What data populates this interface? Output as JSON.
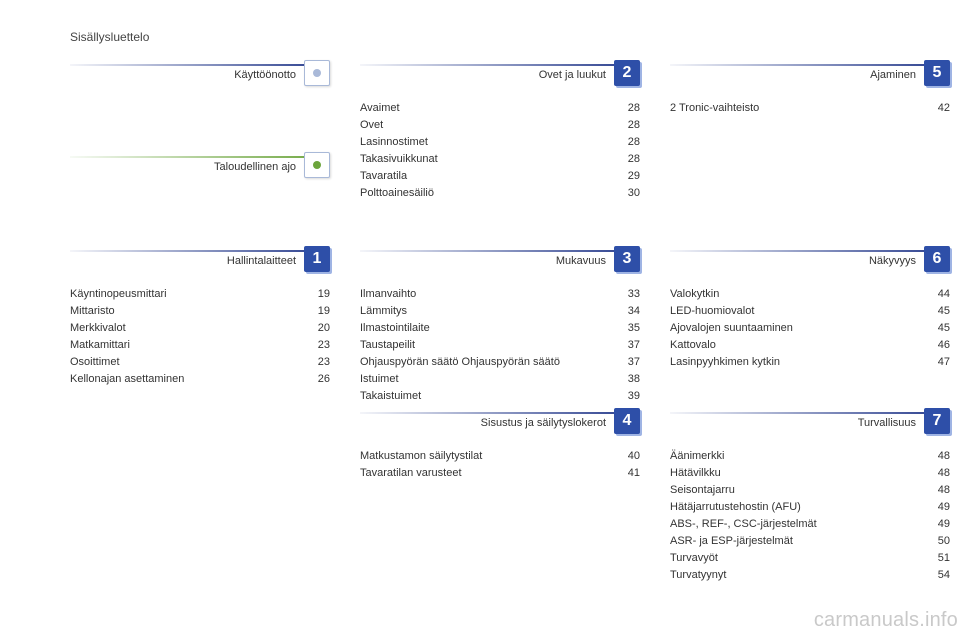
{
  "page_title": "Sisällysluettelo",
  "watermark": "carmanuals.info",
  "colors": {
    "blue_rule_end": "#263b8c",
    "green_rule_end": "#6ca53c",
    "num_square_bg": "#2e4fa8",
    "num_square_shadow": "#9fb4e4",
    "text": "#333333"
  },
  "row1": {
    "c1": {
      "title": "Käyttöönotto",
      "rule": "blue",
      "badge": "icon",
      "badge_color": "#a9b9d8",
      "items": []
    },
    "c2": {
      "title": "Ovet ja luukut",
      "rule": "blue",
      "badge": "2",
      "items": [
        {
          "label": "Avaimet",
          "page": "28"
        },
        {
          "label": "Ovet",
          "page": "28"
        },
        {
          "label": "Lasinnostimet",
          "page": "28"
        },
        {
          "label": "Takasivuikkunat",
          "page": "28"
        },
        {
          "label": "Tavaratila",
          "page": "29"
        },
        {
          "label": "Polttoainesäiliö",
          "page": "30"
        }
      ]
    },
    "c3": {
      "title": "Ajaminen",
      "rule": "blue",
      "badge": "5",
      "items": [
        {
          "label": "2 Tronic-vaihteisto",
          "page": "42"
        }
      ]
    }
  },
  "row1b": {
    "c1": {
      "title": "Taloudellinen ajo",
      "rule": "green",
      "badge": "icon",
      "badge_color": "#6ca53c",
      "items": []
    }
  },
  "row2": {
    "c1": {
      "title": "Hallintalaitteet",
      "rule": "blue",
      "badge": "1",
      "items": [
        {
          "label": "Käyntinopeusmittari",
          "page": "19"
        },
        {
          "label": "Mittaristo",
          "page": "19"
        },
        {
          "label": "Merkkivalot",
          "page": "20"
        },
        {
          "label": "Matkamittari",
          "page": "23"
        },
        {
          "label": "Osoittimet",
          "page": "23"
        },
        {
          "label": "Kellonajan asettaminen",
          "page": "26"
        }
      ]
    },
    "c2": {
      "title": "Mukavuus",
      "rule": "blue",
      "badge": "3",
      "items": [
        {
          "label": "Ilmanvaihto",
          "page": "33"
        },
        {
          "label": "Lämmitys",
          "page": "34"
        },
        {
          "label": "Ilmastointilaite",
          "page": "35"
        },
        {
          "label": "Taustapeilit",
          "page": "37"
        },
        {
          "label": "Ohjauspyörän säätö Ohjauspyörän säätö",
          "page": "37"
        },
        {
          "label": "Istuimet",
          "page": "38"
        },
        {
          "label": "Takaistuimet",
          "page": "39"
        }
      ]
    },
    "c3": {
      "title": "Näkyvyys",
      "rule": "blue",
      "badge": "6",
      "items": [
        {
          "label": "Valokytkin",
          "page": "44"
        },
        {
          "label": "LED-huomiovalot",
          "page": "45"
        },
        {
          "label": "Ajovalojen suuntaaminen",
          "page": "45"
        },
        {
          "label": "Kattovalo",
          "page": "46"
        },
        {
          "label": "Lasinpyyhkimen kytkin",
          "page": "47"
        }
      ]
    }
  },
  "row3": {
    "c2": {
      "title": "Sisustus ja säilytyslokerot",
      "rule": "blue",
      "badge": "4",
      "items": [
        {
          "label": "Matkustamon säilytystilat",
          "page": "40"
        },
        {
          "label": "Tavaratilan varusteet",
          "page": "41"
        }
      ]
    },
    "c3": {
      "title": "Turvallisuus",
      "rule": "blue",
      "badge": "7",
      "items": [
        {
          "label": "Äänimerkki",
          "page": "48"
        },
        {
          "label": "Hätävilkku",
          "page": "48"
        },
        {
          "label": "Seisontajarru",
          "page": "48"
        },
        {
          "label": "Hätäjarrutustehostin (AFU)",
          "page": "49"
        },
        {
          "label": "ABS-, REF-, CSC-järjestelmät",
          "page": "49"
        },
        {
          "label": "ASR- ja ESP-järjestelmät",
          "page": "50"
        },
        {
          "label": "Turvavyöt",
          "page": "51"
        },
        {
          "label": "Turvatyynyt",
          "page": "54"
        }
      ]
    }
  }
}
